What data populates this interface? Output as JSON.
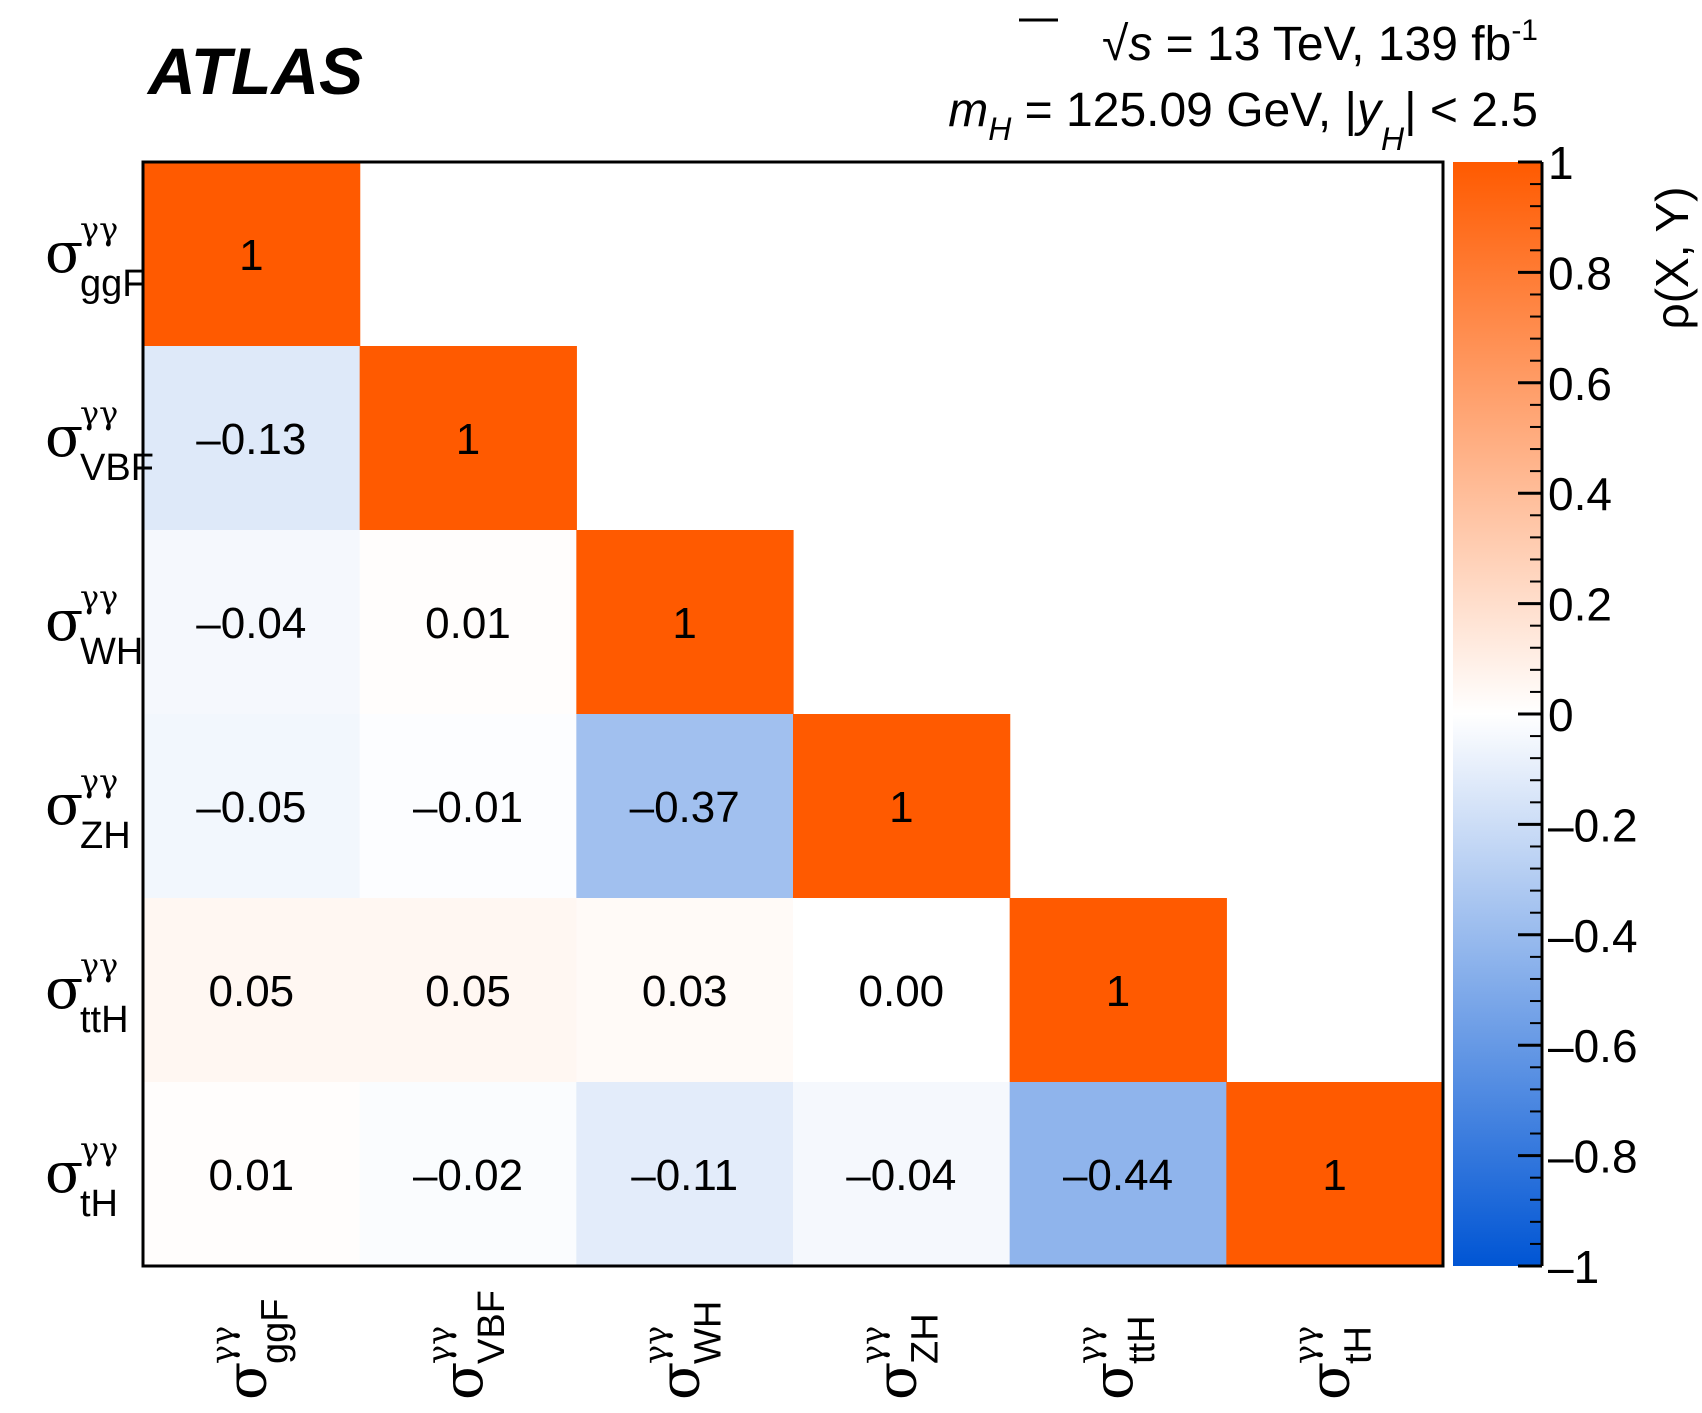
{
  "header": {
    "experiment": "ATLAS",
    "line1": {
      "sqrt": "√",
      "s": "s",
      "text": " = 13 TeV, 139 fb",
      "sup": "-1"
    },
    "line2": {
      "m": "m",
      "msub": "H",
      "mid": " = 125.09 GeV, |",
      "y": "y",
      "ysub": "H",
      "end": "| < 2.5"
    }
  },
  "colors": {
    "positive": "#ff5a00",
    "negative": "#0055d4",
    "zero": "#ffffff",
    "frame": "#000000"
  },
  "chart_data": {
    "type": "heatmap",
    "title": "",
    "categories": [
      {
        "sym": "σ",
        "sup": "γγ",
        "sub": "ggF"
      },
      {
        "sym": "σ",
        "sup": "γγ",
        "sub": "VBF"
      },
      {
        "sym": "σ",
        "sup": "γγ",
        "sub": "WH"
      },
      {
        "sym": "σ",
        "sup": "γγ",
        "sub": "ZH"
      },
      {
        "sym": "σ",
        "sup": "γγ",
        "sub": "ttH"
      },
      {
        "sym": "σ",
        "sup": "γγ",
        "sub": "tH"
      }
    ],
    "matrix": [
      [
        1
      ],
      [
        -0.13,
        1
      ],
      [
        -0.04,
        0.01,
        1
      ],
      [
        -0.05,
        -0.01,
        -0.37,
        1
      ],
      [
        0.05,
        0.05,
        0.03,
        0.0,
        1
      ],
      [
        0.01,
        -0.02,
        -0.11,
        -0.04,
        -0.44,
        1
      ]
    ],
    "cell_labels": [
      [
        "1"
      ],
      [
        "–0.13",
        "1"
      ],
      [
        "–0.04",
        "0.01",
        "1"
      ],
      [
        "–0.05",
        "–0.01",
        "–0.37",
        "1"
      ],
      [
        "0.05",
        "0.05",
        "0.03",
        "0.00",
        "1"
      ],
      [
        "0.01",
        "–0.02",
        "–0.11",
        "–0.04",
        "–0.44",
        "1"
      ]
    ],
    "colorbar": {
      "label": "ρ(X, Y)",
      "range": [
        -1,
        1
      ],
      "tick_labels": [
        "1",
        "0.8",
        "0.6",
        "0.4",
        "0.2",
        "0",
        "–0.2",
        "–0.4",
        "–0.6",
        "–0.8",
        "–1"
      ]
    }
  }
}
